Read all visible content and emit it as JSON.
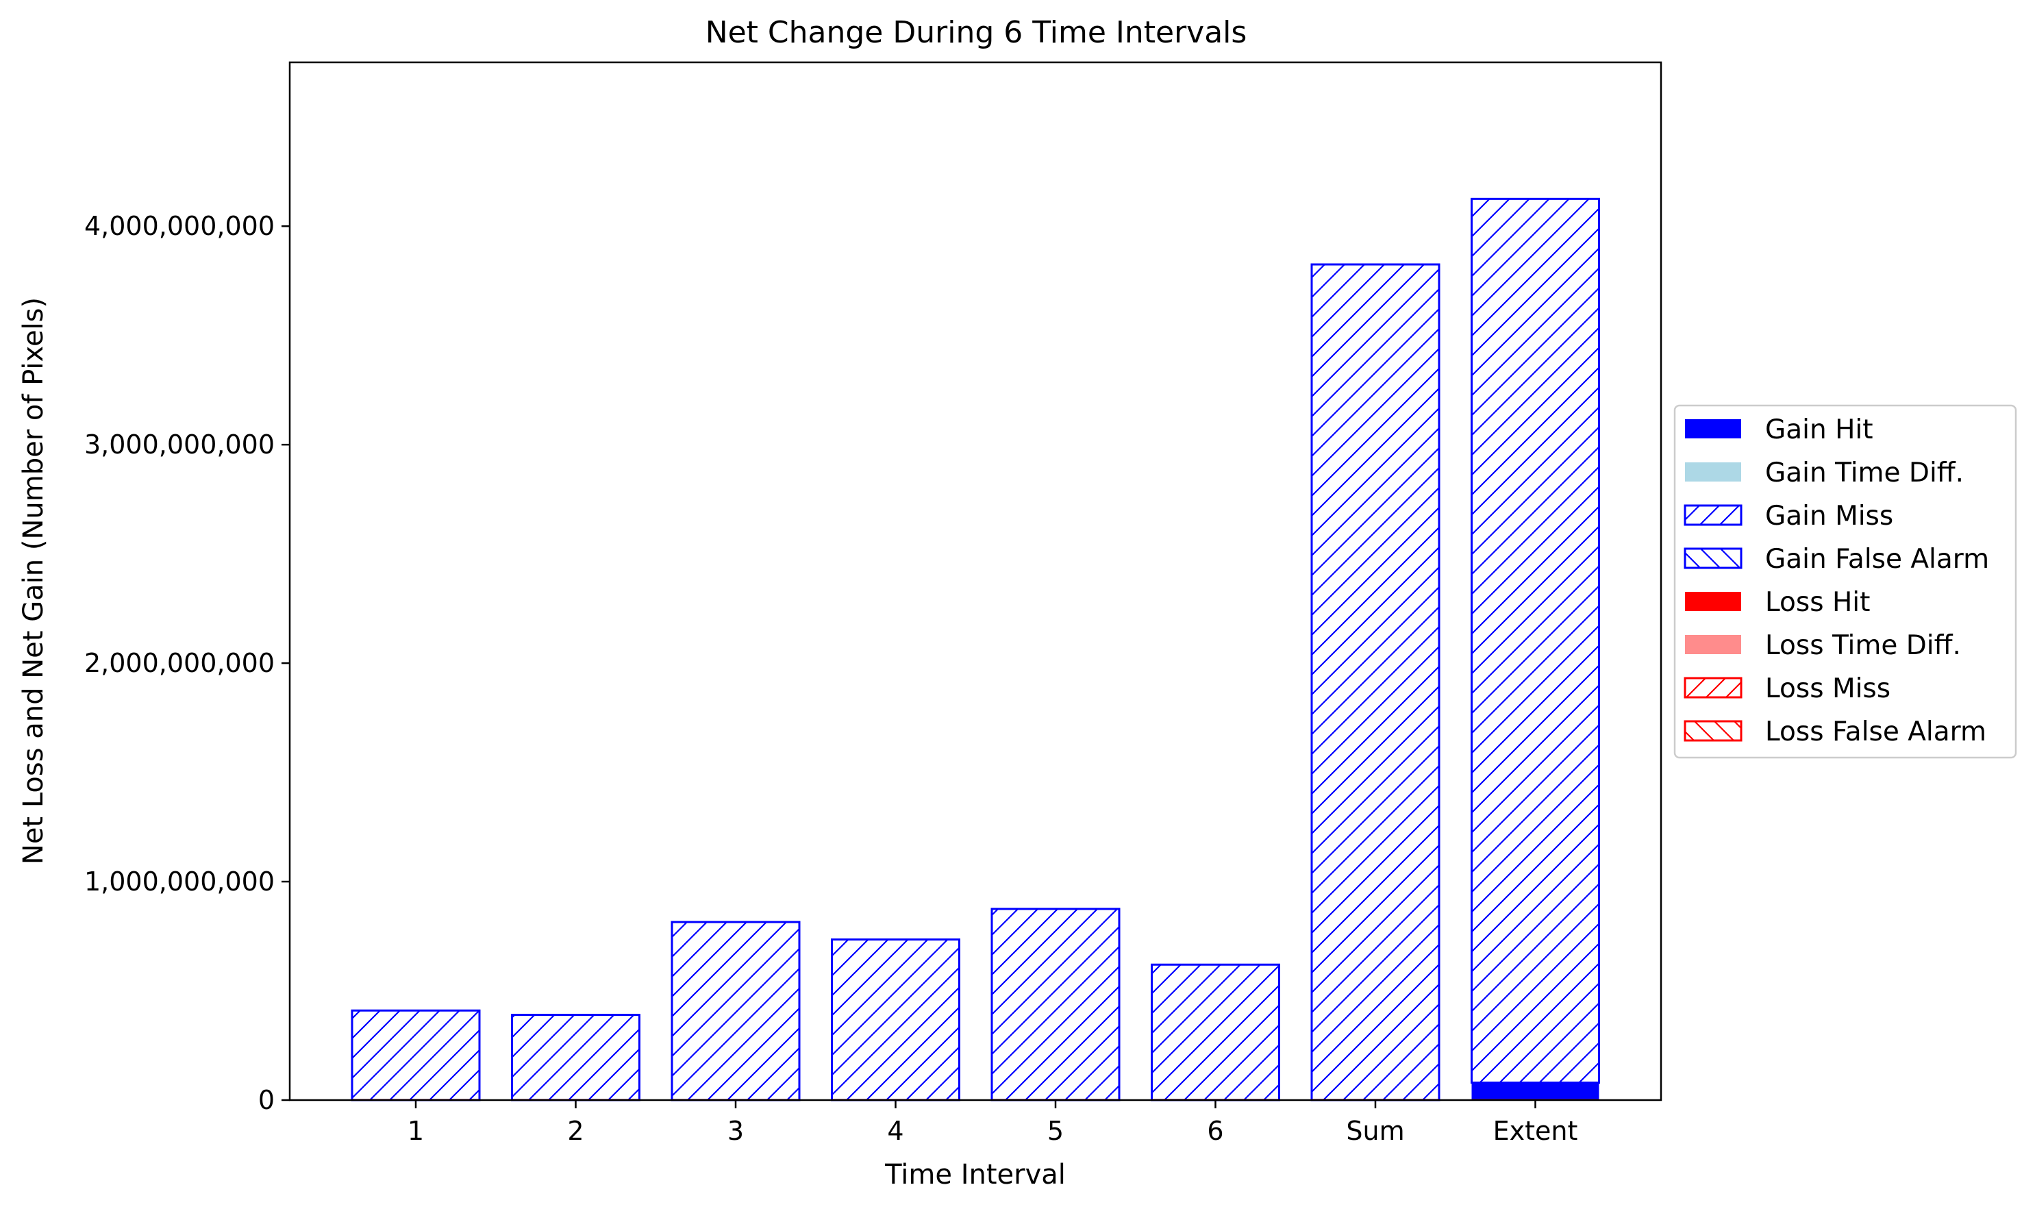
{
  "chart_data": {
    "type": "bar",
    "title": "Net Change During 6 Time Intervals",
    "xlabel": "Time Interval",
    "ylabel": "Net Loss and Net Gain (Number of Pixels)",
    "categories": [
      "1",
      "2",
      "3",
      "4",
      "5",
      "6",
      "Sum",
      "Extent"
    ],
    "ylim": [
      0,
      4750000000
    ],
    "yticks": [
      0,
      1000000000,
      2000000000,
      3000000000,
      4000000000
    ],
    "ytick_labels": [
      "0",
      "1,000,000,000",
      "2,000,000,000",
      "3,000,000,000",
      "4,000,000,000"
    ],
    "stacked": true,
    "legend_position": "center-right outside",
    "series": [
      {
        "name": "Gain Hit",
        "color": "#0000ff",
        "fill": "solid",
        "values": [
          0,
          0,
          0,
          0,
          0,
          0,
          0,
          80000000
        ]
      },
      {
        "name": "Gain Time Diff.",
        "color": "#add8e6",
        "fill": "solid",
        "values": [
          0,
          0,
          0,
          0,
          0,
          0,
          0,
          0
        ]
      },
      {
        "name": "Gain Miss",
        "color": "#0000ff",
        "fill": "hatch-forward",
        "values": [
          410000000,
          390000000,
          815000000,
          735000000,
          875000000,
          620000000,
          3825000000,
          4045000000
        ]
      },
      {
        "name": "Gain False Alarm",
        "color": "#0000ff",
        "fill": "hatch-back",
        "values": [
          0,
          0,
          0,
          0,
          0,
          0,
          0,
          0
        ]
      },
      {
        "name": "Loss Hit",
        "color": "#ff0000",
        "fill": "solid",
        "values": [
          0,
          0,
          0,
          0,
          0,
          0,
          0,
          0
        ]
      },
      {
        "name": "Loss Time Diff.",
        "color": "#ff8c8c",
        "fill": "solid",
        "values": [
          0,
          0,
          0,
          0,
          0,
          0,
          0,
          0
        ]
      },
      {
        "name": "Loss Miss",
        "color": "#ff0000",
        "fill": "hatch-forward",
        "values": [
          0,
          0,
          0,
          0,
          0,
          0,
          0,
          0
        ]
      },
      {
        "name": "Loss False Alarm",
        "color": "#ff0000",
        "fill": "hatch-back",
        "values": [
          0,
          0,
          0,
          0,
          0,
          0,
          0,
          0
        ]
      }
    ]
  }
}
